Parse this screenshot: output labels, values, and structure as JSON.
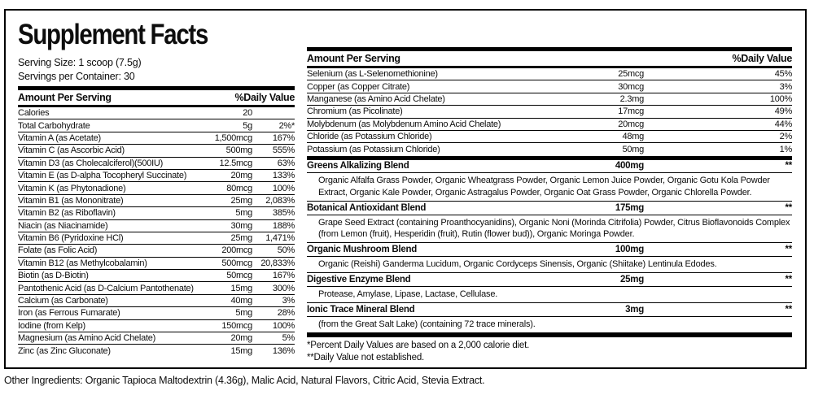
{
  "title": "Supplement Facts",
  "serving": {
    "size": "Serving Size: 1 scoop (7.5g)",
    "per_container": "Servings per Container: 30"
  },
  "left_table": {
    "header": {
      "amount": "Amount Per Serving",
      "dv": "%Daily Value"
    },
    "rows": [
      {
        "name": "Calories",
        "amount": "20",
        "dv": ""
      },
      {
        "name": "Total Carbohydrate",
        "amount": "5g",
        "dv": "2%*"
      },
      {
        "name": "Vitamin A (as Acetate)",
        "amount": "1,500mcg",
        "dv": "167%"
      },
      {
        "name": "Vitamin C (as Ascorbic Acid)",
        "amount": "500mg",
        "dv": "555%"
      },
      {
        "name": "Vitamin D3 (as Cholecalciferol)(500IU)",
        "amount": "12.5mcg",
        "dv": "63%"
      },
      {
        "name": "Vitamin E (as D-alpha Tocopheryl Succinate)",
        "amount": "20mg",
        "dv": "133%"
      },
      {
        "name": "Vitamin K (as Phytonadione)",
        "amount": "80mcg",
        "dv": "100%"
      },
      {
        "name": "Vitamin B1 (as Mononitrate)",
        "amount": "25mg",
        "dv": "2,083%"
      },
      {
        "name": "Vitamin B2 (as Riboflavin)",
        "amount": "5mg",
        "dv": "385%"
      },
      {
        "name": "Niacin (as Niacinamide)",
        "amount": "30mg",
        "dv": "188%"
      },
      {
        "name": "Vitamin B6 (Pyridoxine HCl)",
        "amount": "25mg",
        "dv": "1,471%"
      },
      {
        "name": "Folate (as Folic Acid)",
        "amount": "200mcg",
        "dv": "50%"
      },
      {
        "name": "Vitamin B12 (as Methylcobalamin)",
        "amount": "500mcg",
        "dv": "20,833%"
      },
      {
        "name": "Biotin (as D-Biotin)",
        "amount": "50mcg",
        "dv": "167%"
      },
      {
        "name": "Pantothenic Acid (as D-Calcium Pantothenate)",
        "amount": "15mg",
        "dv": "300%"
      },
      {
        "name": "Calcium (as Carbonate)",
        "amount": "40mg",
        "dv": "3%"
      },
      {
        "name": "Iron (as Ferrous Fumarate)",
        "amount": "5mg",
        "dv": "28%"
      },
      {
        "name": "Iodine (from Kelp)",
        "amount": "150mcg",
        "dv": "100%"
      },
      {
        "name": "Magnesium (as Amino Acid Chelate)",
        "amount": "20mg",
        "dv": "5%"
      },
      {
        "name": "Zinc (as Zinc Gluconate)",
        "amount": "15mg",
        "dv": "136%"
      }
    ]
  },
  "right_table": {
    "header": {
      "amount": "Amount Per Serving",
      "dv": "%Daily Value"
    },
    "rows": [
      {
        "name": "Selenium (as L-Selenomethionine)",
        "amount": "25mcg",
        "dv": "45%"
      },
      {
        "name": "Copper (as Copper Citrate)",
        "amount": "30mcg",
        "dv": "3%"
      },
      {
        "name": "Manganese (as Amino Acid Chelate)",
        "amount": "2.3mg",
        "dv": "100%"
      },
      {
        "name": "Chromium (as Picolinate)",
        "amount": "17mcg",
        "dv": "49%"
      },
      {
        "name": "Molybdenum (as Molybdenum Amino Acid Chelate)",
        "amount": "20mcg",
        "dv": "44%"
      },
      {
        "name": "Chloride (as Potassium Chloride)",
        "amount": "48mg",
        "dv": "2%"
      },
      {
        "name": "Potassium (as Potassium Chloride)",
        "amount": "50mg",
        "dv": "1%"
      }
    ],
    "blends": [
      {
        "name": "Greens Alkalizing Blend",
        "amount": "400mg",
        "dv": "**",
        "desc": "Organic Alfalfa Grass Powder, Organic Wheatgrass Powder, Organic Lemon Juice Powder, Organic Gotu Kola Powder Extract, Organic Kale Powder, Organic Astragalus Powder, Organic Oat Grass Powder, Organic Chlorella Powder."
      },
      {
        "name": "Botanical Antioxidant Blend",
        "amount": "175mg",
        "dv": "**",
        "desc": "Grape Seed Extract (containing Proanthocyanidins), Organic Noni (Morinda Citrifolia) Powder, Citrus Bioflavonoids Complex (from Lemon (fruit), Hesperidin (fruit), Rutin (flower bud)), Organic Moringa Powder."
      },
      {
        "name": "Organic Mushroom Blend",
        "amount": "100mg",
        "dv": "**",
        "desc": "Organic (Reishi) Ganderma Lucidum, Organic Cordyceps Sinensis, Organic (Shiitake) Lentinula Edodes."
      },
      {
        "name": "Digestive Enzyme Blend",
        "amount": "25mg",
        "dv": "**",
        "desc": "Protease, Amylase, Lipase, Lactase, Cellulase."
      },
      {
        "name": "Ionic Trace Mineral Blend",
        "amount": "3mg",
        "dv": "**",
        "desc": "(from the Great Salt Lake) (containing 72 trace minerals)."
      }
    ],
    "footnotes": [
      "*Percent Daily Values are based on a 2,000 calorie diet.",
      "**Daily Value not established."
    ]
  },
  "other_ingredients": "Other Ingredients: Organic Tapioca Maltodextrin (4.36g), Malic Acid, Natural Flavors, Citric Acid, Stevia Extract."
}
